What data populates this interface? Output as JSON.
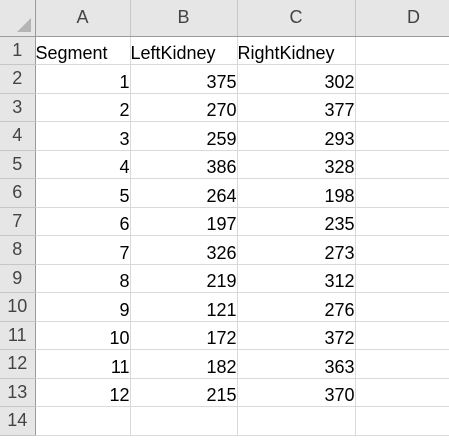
{
  "columns": [
    "A",
    "B",
    "C",
    "D"
  ],
  "row_numbers": [
    "1",
    "2",
    "3",
    "4",
    "5",
    "6",
    "7",
    "8",
    "9",
    "10",
    "11",
    "12",
    "13",
    "14"
  ],
  "headers": [
    "Segment",
    "LeftKidney",
    "RightKidney"
  ],
  "rows": [
    [
      "1",
      "375",
      "302"
    ],
    [
      "2",
      "270",
      "377"
    ],
    [
      "3",
      "259",
      "293"
    ],
    [
      "4",
      "386",
      "328"
    ],
    [
      "5",
      "264",
      "198"
    ],
    [
      "6",
      "197",
      "235"
    ],
    [
      "7",
      "326",
      "273"
    ],
    [
      "8",
      "219",
      "312"
    ],
    [
      "9",
      "121",
      "276"
    ],
    [
      "10",
      "172",
      "372"
    ],
    [
      "11",
      "182",
      "363"
    ],
    [
      "12",
      "215",
      "370"
    ]
  ]
}
